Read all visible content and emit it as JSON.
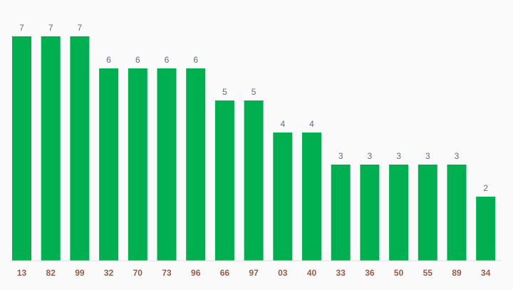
{
  "chart_data": {
    "type": "bar",
    "categories": [
      "13",
      "82",
      "99",
      "32",
      "70",
      "73",
      "96",
      "66",
      "97",
      "03",
      "40",
      "33",
      "36",
      "50",
      "55",
      "89",
      "34"
    ],
    "values": [
      7,
      7,
      7,
      6,
      6,
      6,
      6,
      5,
      5,
      4,
      4,
      3,
      3,
      3,
      3,
      3,
      2
    ],
    "ylim": [
      0,
      7
    ],
    "grid": false,
    "data_labels": true,
    "colors": {
      "bar": "#00b050",
      "value_label": "#5a6f82",
      "tick_label": "#9c5a4a",
      "baseline": "#e0e0e0",
      "background": "#fafafa"
    }
  }
}
